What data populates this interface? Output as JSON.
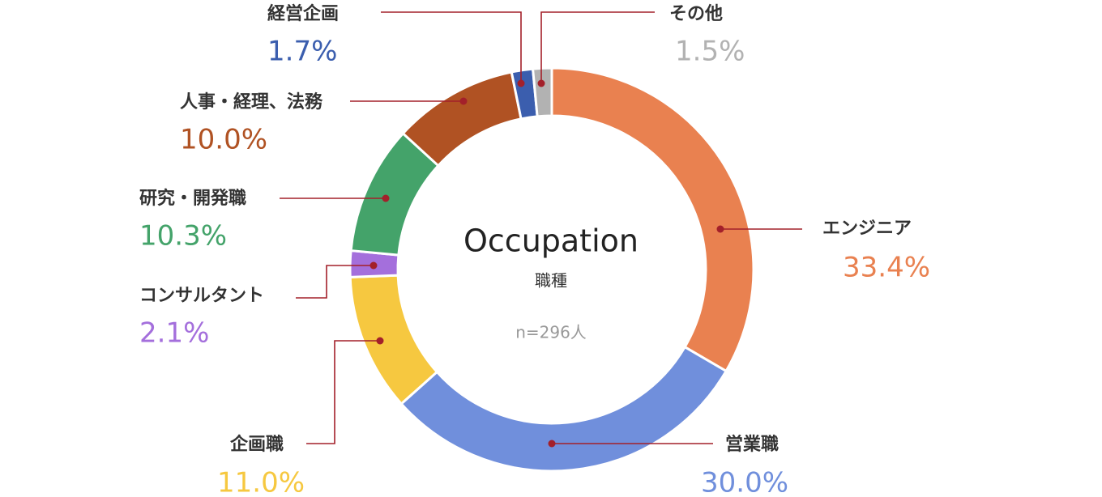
{
  "chart_data": {
    "type": "donut",
    "center_title": "Occupation",
    "center_subtitle": "職種",
    "center_note": "n=296人",
    "categories": [
      "エンジニア",
      "営業職",
      "企画職",
      "コンサルタント",
      "研究・開発職",
      "人事・経理、法務",
      "経営企画",
      "その他"
    ],
    "values": [
      33.4,
      30.0,
      11.0,
      2.1,
      10.3,
      10.0,
      1.7,
      1.5
    ],
    "value_labels": [
      "33.4%",
      "30.0%",
      "11.0%",
      "2.1%",
      "10.3%",
      "10.0%",
      "1.7%",
      "1.5%"
    ],
    "colors": [
      "#e98150",
      "#708fdc",
      "#f6c840",
      "#a46fdc",
      "#44a36a",
      "#b05223",
      "#3b5eae",
      "#b2b2b2"
    ]
  }
}
